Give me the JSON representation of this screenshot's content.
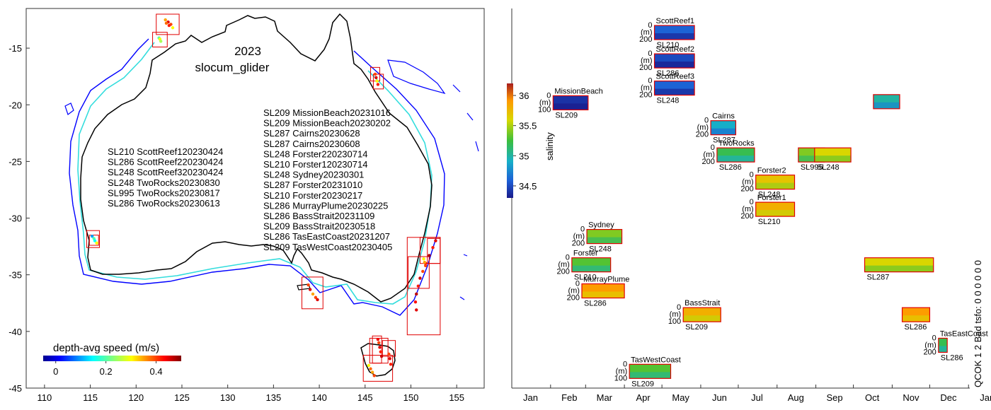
{
  "figure": {
    "year": "2023",
    "platform": "slocum_glider",
    "qc_text": "QCOK 1  2 Bad tsfo: 0  0  0  0  0  0"
  },
  "chart_data": [
    {
      "type": "scatter",
      "name": "map",
      "xlim": [
        108,
        158
      ],
      "ylim": [
        -45,
        -11.5
      ],
      "xticks": [
        110,
        115,
        120,
        125,
        130,
        135,
        140,
        145,
        150,
        155
      ],
      "yticks": [
        -15,
        -20,
        -25,
        -30,
        -35,
        -40,
        -45
      ],
      "colorbar": {
        "label": "depth-avg speed (m/s)",
        "ticks": [
          "0",
          "0.2",
          "0.4"
        ],
        "range": [
          -0.05,
          0.5
        ]
      },
      "deployment_list_left": [
        "SL210 ScottReef120230424",
        "SL286 ScottReef220230424",
        "SL248 ScottReef320230424",
        "SL248 TwoRocks20230830",
        "SL995 TwoRocks20230817",
        "SL286 TwoRocks20230613"
      ],
      "deployment_list_right": [
        "SL209 MissionBeach20231016",
        "SL209 MissionBeach20230202",
        "SL287 Cairns20230628",
        "SL287 Cairns20230608",
        "SL248 Forster220230714",
        "SL210 Forster120230714",
        "SL248 Sydney20230301",
        "SL287 Forster20231010",
        "SL210 Forster20230217",
        "SL286 MurrayPlume20230225",
        "SL286 BassStrait20231109",
        "SL209 BassStrait20230518",
        "SL286 TasEastCoast20231207",
        "SL209 TasWestCoast20230405"
      ],
      "region_boxes": [
        {
          "lon": [
            122.2,
            124.7
          ],
          "lat": [
            -12.0,
            -13.8
          ]
        },
        {
          "lon": [
            121.8,
            123.4
          ],
          "lat": [
            -13.6,
            -14.9
          ]
        },
        {
          "lon": [
            145.6,
            146.6
          ],
          "lat": [
            -16.7,
            -17.9
          ]
        },
        {
          "lon": [
            145.9,
            147.0
          ],
          "lat": [
            -17.3,
            -18.6
          ]
        },
        {
          "lon": [
            114.6,
            116.0
          ],
          "lat": [
            -31.1,
            -32.6
          ]
        },
        {
          "lon": [
            114.9,
            115.9
          ],
          "lat": [
            -31.5,
            -32.4
          ]
        },
        {
          "lon": [
            138.1,
            140.4
          ],
          "lat": [
            -35.2,
            -38.0
          ]
        },
        {
          "lon": [
            151.0,
            153.2
          ],
          "lat": [
            -31.7,
            -34.0
          ]
        },
        {
          "lon": [
            151.8,
            153.2
          ],
          "lat": [
            -31.8,
            -34.0
          ]
        },
        {
          "lon": [
            149.7,
            152.0
          ],
          "lat": [
            -33.4,
            -36.2
          ]
        },
        {
          "lon": [
            149.6,
            153.2
          ],
          "lat": [
            -31.7,
            -40.3
          ]
        },
        {
          "lon": [
            145.5,
            147.5
          ],
          "lat": [
            -40.6,
            -42.8
          ]
        },
        {
          "lon": [
            146.9,
            148.3
          ],
          "lat": [
            -40.8,
            -42.2
          ]
        },
        {
          "lon": [
            144.8,
            148.0
          ],
          "lat": [
            -42.1,
            -44.4
          ]
        },
        {
          "lon": [
            145.8,
            146.8
          ],
          "lat": [
            -40.4,
            -42.8
          ]
        }
      ],
      "tracks": [
        {
          "label": "ScottReef",
          "lon": [
            123.2,
            123.5,
            123.8,
            124.0,
            123.6,
            123.3
          ],
          "lat": [
            -12.5,
            -12.7,
            -12.9,
            -13.2,
            -13.0,
            -12.8
          ],
          "speed": [
            0.35,
            0.45,
            0.4,
            0.3,
            0.42,
            0.38
          ]
        },
        {
          "label": "ScottReef3",
          "lon": [
            122.5,
            122.6,
            122.7
          ],
          "lat": [
            -14.1,
            -14.2,
            -14.4
          ],
          "speed": [
            0.2,
            0.3,
            0.25
          ]
        },
        {
          "label": "MissionBeach",
          "lon": [
            146.1,
            146.2,
            146.3,
            146.4
          ],
          "lat": [
            -17.3,
            -17.6,
            -17.9,
            -18.2
          ],
          "speed": [
            0.4,
            0.45,
            0.3,
            0.42
          ]
        },
        {
          "label": "TwoRocks",
          "lon": [
            115.2,
            115.4,
            115.5,
            115.7
          ],
          "lat": [
            -31.6,
            -31.8,
            -32.0,
            -32.2
          ],
          "speed": [
            0.1,
            0.2,
            0.15,
            0.3
          ]
        },
        {
          "label": "MurrayPlume",
          "lon": [
            138.8,
            139.0,
            139.3,
            139.6,
            139.8
          ],
          "lat": [
            -35.9,
            -36.3,
            -36.7,
            -37.0,
            -37.2
          ],
          "speed": [
            0.4,
            0.45,
            0.35,
            0.4,
            0.45
          ]
        },
        {
          "label": "Forster",
          "lon": [
            152.7,
            152.4,
            152.0,
            151.6,
            151.3,
            151.0,
            150.8,
            150.6,
            150.5,
            150.6
          ],
          "lat": [
            -32.0,
            -32.6,
            -33.3,
            -34.0,
            -34.7,
            -35.3,
            -36.0,
            -36.7,
            -37.4,
            -38.1
          ],
          "speed": [
            0.45,
            0.42,
            0.48,
            0.44,
            0.4,
            0.46,
            0.42,
            0.47,
            0.43,
            0.45
          ]
        },
        {
          "label": "Sydney",
          "lon": [
            151.4,
            151.5,
            151.6
          ],
          "lat": [
            -33.6,
            -33.9,
            -34.2
          ],
          "speed": [
            0.3,
            0.35,
            0.4
          ]
        },
        {
          "label": "BassStrait",
          "lon": [
            146.4,
            146.5,
            146.6,
            146.7,
            146.8
          ],
          "lat": [
            -40.7,
            -41.0,
            -41.4,
            -41.8,
            -42.2
          ],
          "speed": [
            0.44,
            0.4,
            0.45,
            0.42,
            0.46
          ]
        },
        {
          "label": "TasEastCoast",
          "lon": [
            147.6,
            147.7,
            147.8
          ],
          "lat": [
            -42.0,
            -42.4,
            -42.9
          ],
          "speed": [
            0.4,
            0.45,
            0.42
          ]
        },
        {
          "label": "TasWestCoast",
          "lon": [
            145.4,
            145.6,
            145.8,
            146.0
          ],
          "lat": [
            -43.0,
            -43.3,
            -43.6,
            -43.9
          ],
          "speed": [
            0.3,
            0.38,
            0.35,
            0.4
          ]
        }
      ]
    },
    {
      "type": "heatmap",
      "name": "timeline",
      "xlim": [
        0,
        366
      ],
      "ylim": [
        -45,
        -11.5
      ],
      "month_labels": [
        "Jan",
        "Feb",
        "Mar",
        "Apr",
        "May",
        "Jun",
        "Jul",
        "Aug",
        "Sep",
        "Oct",
        "Nov",
        "Dec",
        "Jan"
      ],
      "colorbar": {
        "label": "salinity",
        "ticks": [
          "34.5",
          "35",
          "35.5",
          "36"
        ],
        "range": [
          34.3,
          36.2
        ]
      },
      "depth_label": "(m)",
      "panels": [
        {
          "site": "ScottReef1",
          "glider": "SL210",
          "start": 114,
          "end": 146,
          "ytop": -13.0,
          "maxdepth": "200",
          "sal": 34.6
        },
        {
          "site": "ScottReef2",
          "glider": "SL286",
          "start": 114,
          "end": 146,
          "ytop": -15.5,
          "maxdepth": "200",
          "sal": 34.5
        },
        {
          "site": "ScottReef3",
          "glider": "SL248",
          "start": 114,
          "end": 146,
          "ytop": -17.9,
          "maxdepth": "200",
          "sal": 34.6
        },
        {
          "site": "MissionBeach",
          "glider": "SL209",
          "start": 33,
          "end": 61,
          "ytop": -19.2,
          "maxdepth": "100",
          "sal": 34.4
        },
        {
          "site": "",
          "glider": "",
          "start": 289,
          "end": 310,
          "ytop": -19.1,
          "maxdepth": "",
          "sal": 35.0
        },
        {
          "site": "Cairns",
          "glider": "SL287",
          "start": 159,
          "end": 179,
          "ytop": -21.4,
          "maxdepth": "200",
          "sal": 34.9
        },
        {
          "site": "TwoRocks",
          "glider": "SL286",
          "start": 164,
          "end": 194,
          "ytop": -23.8,
          "maxdepth": "200",
          "sal": 35.2
        },
        {
          "site": "",
          "glider": "SL995",
          "start": 229,
          "end": 250,
          "ytop": -23.8,
          "maxdepth": "",
          "sal": 35.4
        },
        {
          "site": "",
          "glider": "SL248",
          "start": 242,
          "end": 271,
          "ytop": -23.8,
          "maxdepth": "",
          "sal": 35.6
        },
        {
          "site": "Forster2",
          "glider": "SL248",
          "start": 195,
          "end": 226,
          "ytop": -26.2,
          "maxdepth": "200",
          "sal": 35.7
        },
        {
          "site": "Forster1",
          "glider": "SL210",
          "start": 195,
          "end": 226,
          "ytop": -28.6,
          "maxdepth": "200",
          "sal": 35.8
        },
        {
          "site": "Sydney",
          "glider": "SL248",
          "start": 60,
          "end": 88,
          "ytop": -31.0,
          "maxdepth": "200",
          "sal": 35.4
        },
        {
          "site": "Forster",
          "glider": "SL210",
          "start": 48,
          "end": 79,
          "ytop": -33.5,
          "maxdepth": "200",
          "sal": 35.3
        },
        {
          "site": "",
          "glider": "SL287",
          "start": 282,
          "end": 337,
          "ytop": -33.5,
          "maxdepth": "",
          "sal": 35.6
        },
        {
          "site": "MurrayPlume",
          "glider": "SL286",
          "start": 56,
          "end": 90,
          "ytop": -35.8,
          "maxdepth": "200",
          "sal": 35.9
        },
        {
          "site": "BassStrait",
          "glider": "SL209",
          "start": 137,
          "end": 167,
          "ytop": -37.9,
          "maxdepth": "100",
          "sal": 35.8
        },
        {
          "site": "",
          "glider": "SL286",
          "start": 312,
          "end": 334,
          "ytop": -37.9,
          "maxdepth": "",
          "sal": 35.9
        },
        {
          "site": "TasEastCoast",
          "glider": "SL286",
          "start": 341,
          "end": 348,
          "ytop": -40.6,
          "maxdepth": "200",
          "sal": 35.2
        },
        {
          "site": "TasWestCoast",
          "glider": "SL209",
          "start": 94,
          "end": 127,
          "ytop": -42.9,
          "maxdepth": "100",
          "sal": 35.3
        }
      ]
    }
  ]
}
